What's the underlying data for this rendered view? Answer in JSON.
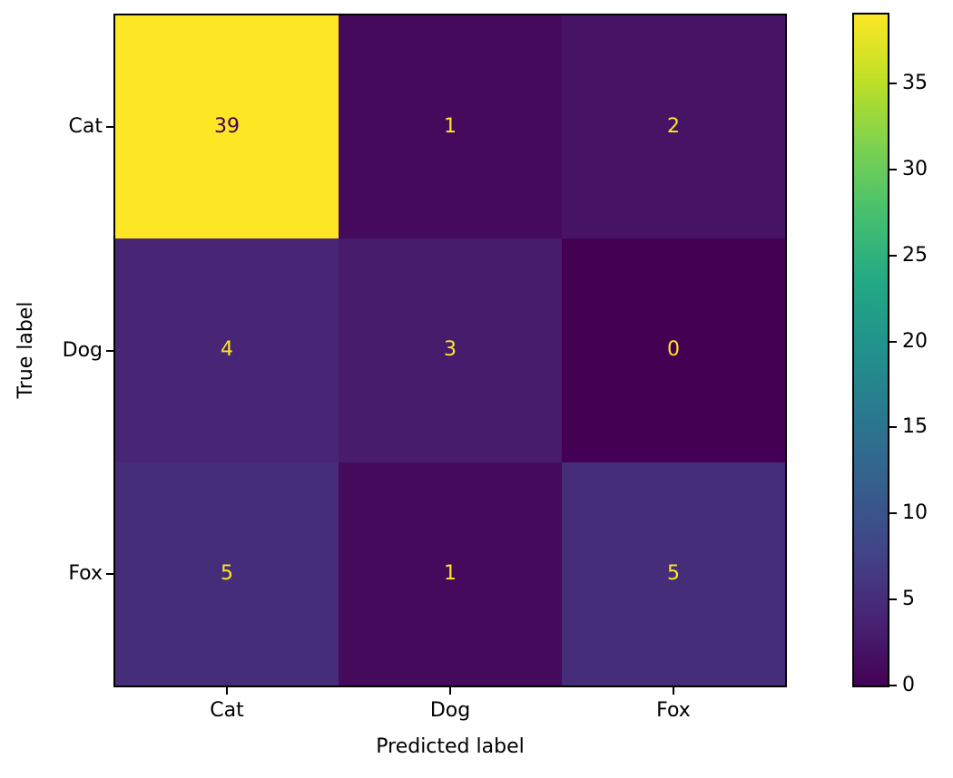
{
  "figure": {
    "background_color": "#ffffff",
    "frame_color": "#000000",
    "text_color": "#000000"
  },
  "chart_data": {
    "type": "heatmap",
    "subtype": "confusion-matrix",
    "title": "",
    "xlabel": "Predicted label",
    "ylabel": "True label",
    "x_tick_labels": [
      "Cat",
      "Dog",
      "Fox"
    ],
    "y_tick_labels": [
      "Cat",
      "Dog",
      "Fox"
    ],
    "matrix": [
      [
        39,
        1,
        2
      ],
      [
        4,
        3,
        0
      ],
      [
        5,
        1,
        5
      ]
    ],
    "vmin": 0,
    "vmax": 39,
    "colormap": "viridis",
    "cmap_min_hex": "#440154",
    "cmap_max_hex": "#fde725",
    "annotation_color_on_dark": "#fde725",
    "annotation_color_on_light": "#440154",
    "colorbar": {
      "position": "right",
      "ticks": [
        0,
        5,
        10,
        15,
        20,
        25,
        30,
        35
      ]
    },
    "grid": false,
    "legend": false
  }
}
